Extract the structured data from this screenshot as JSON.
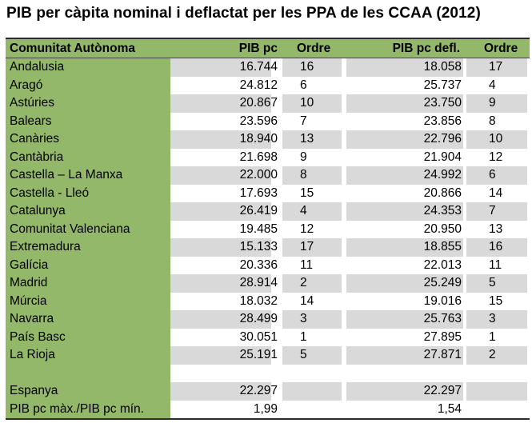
{
  "title": "PIB per càpita nominal i deflactat per les PPA de les CCAA (2012)",
  "header": {
    "name": "Comunitat Autònoma",
    "pib": "PIB pc",
    "ordre": "Ordre",
    "defl": "PIB pc defl.",
    "ordre2": "Ordre"
  },
  "rows": [
    {
      "name": "Andalusia",
      "pib": "16.744",
      "ord": "16",
      "defl": "18.058",
      "ord2": "17"
    },
    {
      "name": "Aragó",
      "pib": "24.812",
      "ord": "6",
      "defl": "25.737",
      "ord2": "4"
    },
    {
      "name": "Astúries",
      "pib": "20.867",
      "ord": "10",
      "defl": "23.750",
      "ord2": "9"
    },
    {
      "name": "Balears",
      "pib": "23.596",
      "ord": "7",
      "defl": "23.856",
      "ord2": "8"
    },
    {
      "name": "Canàries",
      "pib": "18.940",
      "ord": "13",
      "defl": "22.796",
      "ord2": "10"
    },
    {
      "name": "Cantàbria",
      "pib": "21.698",
      "ord": "9",
      "defl": "21.904",
      "ord2": "12"
    },
    {
      "name": "Castella – La Manxa",
      "pib": "22.000",
      "ord": "8",
      "defl": "24.992",
      "ord2": "6"
    },
    {
      "name": "Castella - Lleó",
      "pib": "17.693",
      "ord": "15",
      "defl": "20.866",
      "ord2": "14"
    },
    {
      "name": "Catalunya",
      "pib": "26.419",
      "ord": "4",
      "defl": "24.353",
      "ord2": "7"
    },
    {
      "name": "Comunitat Valenciana",
      "pib": "19.485",
      "ord": "12",
      "defl": "20.950",
      "ord2": "13"
    },
    {
      "name": "Extremadura",
      "pib": "15.133",
      "ord": "17",
      "defl": "18.855",
      "ord2": "16"
    },
    {
      "name": "Galícia",
      "pib": "20.336",
      "ord": "11",
      "defl": "22.013",
      "ord2": "11"
    },
    {
      "name": "Madrid",
      "pib": "28.914",
      "ord": "2",
      "defl": "25.249",
      "ord2": "5"
    },
    {
      "name": "Múrcia",
      "pib": "18.032",
      "ord": "14",
      "defl": "19.016",
      "ord2": "15"
    },
    {
      "name": "Navarra",
      "pib": "28.499",
      "ord": "3",
      "defl": "25.763",
      "ord2": "3"
    },
    {
      "name": "País Basc",
      "pib": "30.051",
      "ord": "1",
      "defl": "27.895",
      "ord2": "1"
    },
    {
      "name": "La Rioja",
      "pib": "25.191",
      "ord": "5",
      "defl": "27.871",
      "ord2": "2"
    }
  ],
  "footer": [
    {
      "name": "Espanya",
      "pib": "22.297",
      "ord": "",
      "defl": "22.297",
      "ord2": ""
    },
    {
      "name": "PIB pc màx./PIB pc mín.",
      "pib": "1,99",
      "ord": "",
      "defl": "1,54",
      "ord2": ""
    }
  ],
  "colors": {
    "green": "#94b86a",
    "band": "#d9d9d9"
  }
}
